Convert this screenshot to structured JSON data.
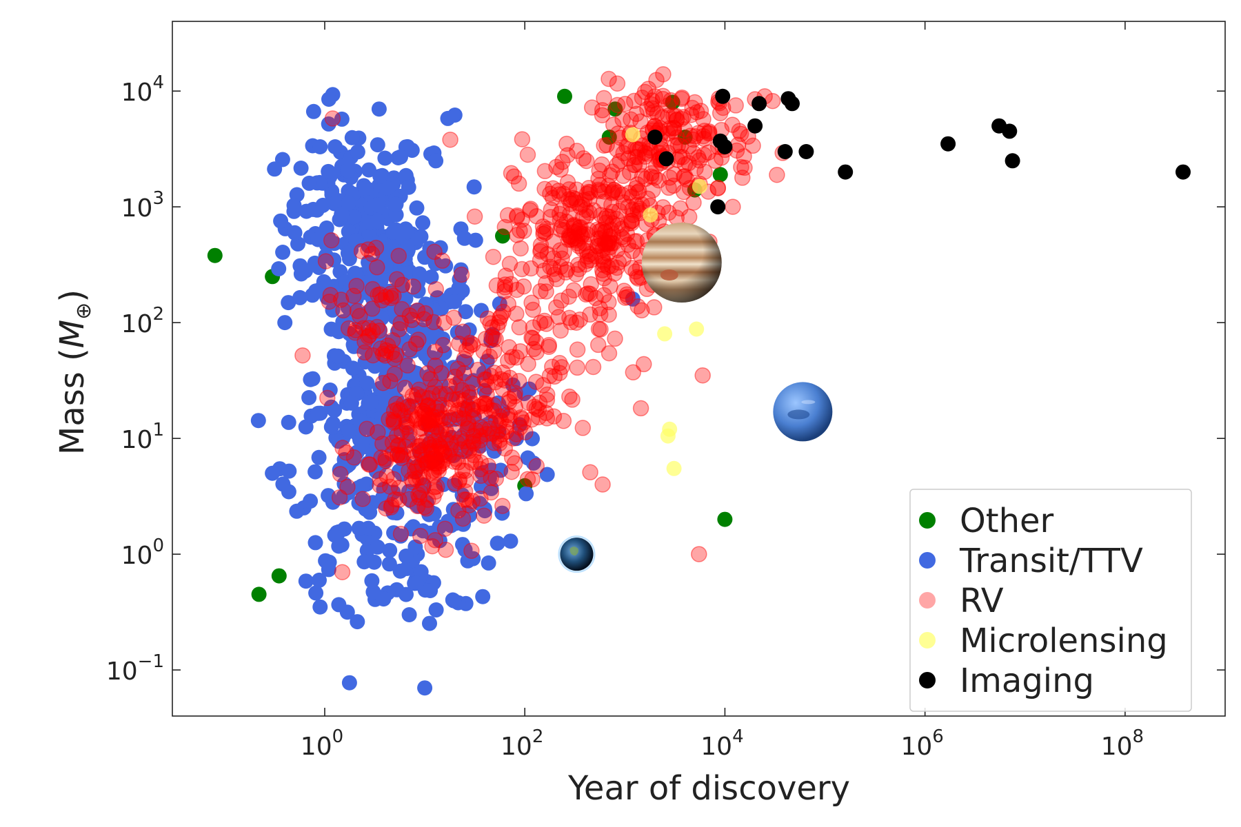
{
  "chart_data": {
    "type": "scatter",
    "title": "",
    "xlabel": "Year of discovery",
    "ylabel": "Mass (",
    "ylabel_symbol": "M",
    "ylabel_subscript": "⊕",
    "ylabel_close": ")",
    "x_scale": "log",
    "y_scale": "log",
    "xlim": [
      0.03,
      1000000000
    ],
    "ylim": [
      0.04,
      40000
    ],
    "grid": false,
    "legend_position": "bottom-right",
    "x_ticks": [
      {
        "value": 1,
        "base": "10",
        "exp": "0"
      },
      {
        "value": 100,
        "base": "10",
        "exp": "2"
      },
      {
        "value": 10000,
        "base": "10",
        "exp": "4"
      },
      {
        "value": 1000000,
        "base": "10",
        "exp": "6"
      },
      {
        "value": 100000000,
        "base": "10",
        "exp": "8"
      }
    ],
    "y_ticks": [
      {
        "value": 0.1,
        "base": "10",
        "exp": "−1"
      },
      {
        "value": 1,
        "base": "10",
        "exp": "0"
      },
      {
        "value": 10,
        "base": "10",
        "exp": "1"
      },
      {
        "value": 100,
        "base": "10",
        "exp": "2"
      },
      {
        "value": 1000,
        "base": "10",
        "exp": "3"
      },
      {
        "value": 10000,
        "base": "10",
        "exp": "4"
      }
    ],
    "series": [
      {
        "name": "Other",
        "color": "#008000",
        "opacity": 1.0,
        "x": [
          0.08,
          0.3,
          0.22,
          0.35,
          250,
          100,
          10000,
          60,
          800,
          4000,
          3000,
          9000,
          1.5,
          700,
          5000
        ],
        "y": [
          380,
          250,
          0.45,
          0.65,
          9000,
          3.9,
          2.0,
          560,
          7000,
          4000,
          8000,
          1900,
          160,
          4000,
          1400
        ]
      },
      {
        "name": "Transit/TTV",
        "color": "#4169E1",
        "opacity": 1.0,
        "generated": true,
        "clusters": [
          {
            "cx": 2.0,
            "cy": 700,
            "sx": 0.35,
            "sy": 0.45,
            "n": 170
          },
          {
            "cx": 6.0,
            "cy": 200,
            "sx": 0.35,
            "sy": 0.5,
            "n": 130
          },
          {
            "cx": 5.0,
            "cy": 35,
            "sx": 0.4,
            "sy": 0.45,
            "n": 160
          },
          {
            "cx": 3.0,
            "cy": 5,
            "sx": 0.4,
            "sy": 0.45,
            "n": 140
          },
          {
            "cx": 30,
            "cy": 10,
            "sx": 0.35,
            "sy": 0.5,
            "n": 90
          },
          {
            "cx": 8,
            "cy": 1.2,
            "sx": 0.4,
            "sy": 0.35,
            "n": 50
          }
        ],
        "x": [
          1.1,
          3.5,
          17,
          20,
          0.9,
          0.7,
          0.4,
          0.3,
          10,
          0.9,
          7,
          13,
          38,
          1200
        ],
        "y": [
          8500,
          7000,
          5800,
          6200,
          3300,
          1600,
          100,
          5,
          0.07,
          0.35,
          0.3,
          0.33,
          0.43,
          160
        ]
      },
      {
        "name": "RV",
        "color": "#FF0000",
        "opacity": 0.35,
        "generated": true,
        "clusters": [
          {
            "cx": 500,
            "cy": 600,
            "sx": 0.4,
            "sy": 0.35,
            "n": 260
          },
          {
            "cx": 3000,
            "cy": 3500,
            "sx": 0.4,
            "sy": 0.25,
            "n": 180
          },
          {
            "cx": 12,
            "cy": 8,
            "sx": 0.35,
            "sy": 0.35,
            "n": 240
          },
          {
            "cx": 3.5,
            "cy": 150,
            "sx": 0.3,
            "sy": 0.3,
            "n": 60
          },
          {
            "cx": 80,
            "cy": 60,
            "sx": 0.45,
            "sy": 0.5,
            "n": 120
          },
          {
            "cx": 40,
            "cy": 20,
            "sx": 0.35,
            "sy": 0.35,
            "n": 80
          }
        ],
        "x": [
          400,
          5500,
          6000,
          600,
          1.5,
          1.2,
          18,
          2000,
          5000,
          20000,
          25000,
          7000,
          12000,
          30000
        ],
        "y": [
          1.0,
          1.0,
          35,
          4.0,
          0.7,
          5800,
          3800,
          9000,
          8000,
          8500,
          9000,
          500,
          1000,
          8200
        ]
      },
      {
        "name": "Microlensing",
        "color": "#FFFF66",
        "opacity": 0.7,
        "x": [
          2700,
          2500,
          3100,
          2100,
          5200,
          2800,
          1800,
          1200,
          5600
        ],
        "y": [
          10.5,
          80,
          5.5,
          230,
          88,
          12,
          850,
          4200,
          1500
        ]
      },
      {
        "name": "Imaging",
        "color": "#000000",
        "opacity": 1.0,
        "x": [
          9500,
          22000,
          43000,
          47000,
          2000,
          2600,
          9000,
          10000,
          20000,
          40000,
          65000,
          160000,
          1700000,
          5500000,
          7000000,
          7500000,
          380000000,
          8500
        ],
        "y": [
          9000,
          7800,
          8600,
          7800,
          4000,
          2600,
          3700,
          3300,
          5000,
          3000,
          3000,
          2000,
          3500,
          5000,
          4500,
          2500,
          2000,
          1000
        ]
      }
    ],
    "legend": [
      {
        "label": "Other",
        "color": "#008000",
        "opacity": 1.0
      },
      {
        "label": "Transit/TTV",
        "color": "#4169E1",
        "opacity": 1.0
      },
      {
        "label": "RV",
        "color": "#FF0000",
        "opacity": 0.35
      },
      {
        "label": "Microlensing",
        "color": "#FFFF66",
        "opacity": 0.7
      },
      {
        "label": "Imaging",
        "color": "#000000",
        "opacity": 1.0
      }
    ],
    "planet_markers": [
      {
        "name": "earth-icon",
        "x": 330,
        "y": 1.0,
        "size": "small"
      },
      {
        "name": "neptune-icon",
        "x": 60000,
        "y": 17,
        "size": "medium"
      },
      {
        "name": "jupiter-icon",
        "x": 3700,
        "y": 330,
        "size": "large"
      }
    ]
  }
}
